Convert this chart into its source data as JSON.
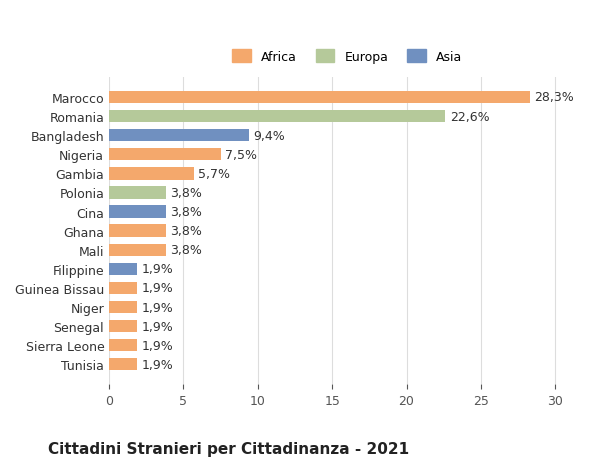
{
  "categories": [
    "Marocco",
    "Romania",
    "Bangladesh",
    "Nigeria",
    "Gambia",
    "Polonia",
    "Cina",
    "Ghana",
    "Mali",
    "Filippine",
    "Guinea Bissau",
    "Niger",
    "Senegal",
    "Sierra Leone",
    "Tunisia"
  ],
  "values": [
    28.3,
    22.6,
    9.4,
    7.5,
    5.7,
    3.8,
    3.8,
    3.8,
    3.8,
    1.9,
    1.9,
    1.9,
    1.9,
    1.9,
    1.9
  ],
  "continents": [
    "Africa",
    "Europa",
    "Asia",
    "Africa",
    "Africa",
    "Europa",
    "Asia",
    "Africa",
    "Africa",
    "Asia",
    "Africa",
    "Africa",
    "Africa",
    "Africa",
    "Africa"
  ],
  "colors": {
    "Africa": "#F4A86C",
    "Europa": "#B5C99A",
    "Asia": "#7090C0"
  },
  "legend_order": [
    "Africa",
    "Europa",
    "Asia"
  ],
  "xlim": [
    0,
    32
  ],
  "xticks": [
    0,
    5,
    10,
    15,
    20,
    25,
    30
  ],
  "title_bold": "Cittadini Stranieri per Cittadinanza - 2021",
  "bg_color": "#ffffff",
  "grid_color": "#dddddd",
  "label_fontsize": 9,
  "value_fontsize": 9,
  "title_fontsize": 11,
  "subtitle_fontsize": 8.5
}
